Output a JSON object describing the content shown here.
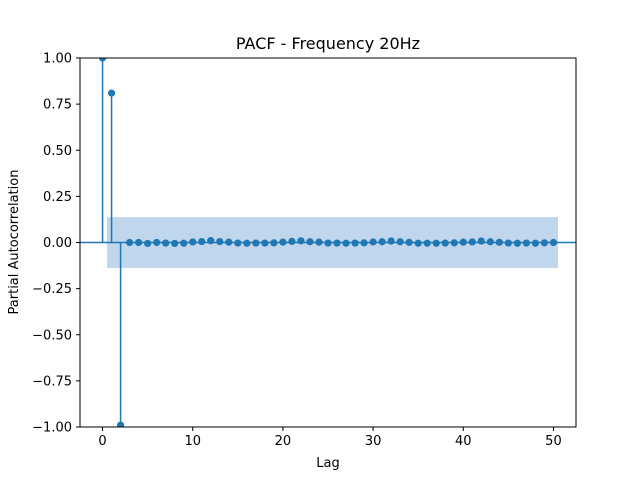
{
  "chart_data": {
    "type": "stem",
    "title": "PACF - Frequency 20Hz",
    "xlabel": "Lag",
    "ylabel": "Partial Autocorrelation",
    "xlim": [
      -2.5,
      52.5
    ],
    "ylim": [
      -1.0,
      1.0
    ],
    "xticks": [
      0,
      10,
      20,
      30,
      40,
      50
    ],
    "xtick_labels": [
      "0",
      "10",
      "20",
      "30",
      "40",
      "50"
    ],
    "yticks": [
      -1.0,
      -0.75,
      -0.5,
      -0.25,
      0.0,
      0.25,
      0.5,
      0.75,
      1.0
    ],
    "ytick_labels": [
      "−1.00",
      "−0.75",
      "−0.50",
      "−0.25",
      "0.00",
      "0.25",
      "0.50",
      "0.75",
      "1.00"
    ],
    "grid": false,
    "lags": [
      0,
      1,
      2,
      3,
      4,
      5,
      6,
      7,
      8,
      9,
      10,
      11,
      12,
      13,
      14,
      15,
      16,
      17,
      18,
      19,
      20,
      21,
      22,
      23,
      24,
      25,
      26,
      27,
      28,
      29,
      30,
      31,
      32,
      33,
      34,
      35,
      36,
      37,
      38,
      39,
      40,
      41,
      42,
      43,
      44,
      45,
      46,
      47,
      48,
      49,
      50
    ],
    "values": [
      1.0,
      0.81,
      -0.99,
      0.0,
      0.0,
      -0.005,
      0.0,
      -0.003,
      -0.005,
      -0.004,
      0.003,
      0.005,
      0.01,
      0.005,
      0.002,
      -0.003,
      -0.004,
      -0.003,
      -0.003,
      -0.002,
      0.002,
      0.006,
      0.009,
      0.004,
      0.002,
      -0.003,
      -0.003,
      -0.004,
      -0.003,
      -0.002,
      0.003,
      0.004,
      0.008,
      0.004,
      0.001,
      -0.004,
      -0.004,
      -0.004,
      -0.003,
      -0.002,
      0.002,
      0.003,
      0.008,
      0.004,
      0.001,
      -0.003,
      -0.004,
      -0.003,
      -0.004,
      -0.002,
      0.0
    ],
    "confidence_band": {
      "x_start": 0.5,
      "x_end": 50.5,
      "lower": -0.138,
      "upper": 0.138
    },
    "colors": {
      "marker": "#1f77b4",
      "band": "#aac8e6"
    }
  }
}
